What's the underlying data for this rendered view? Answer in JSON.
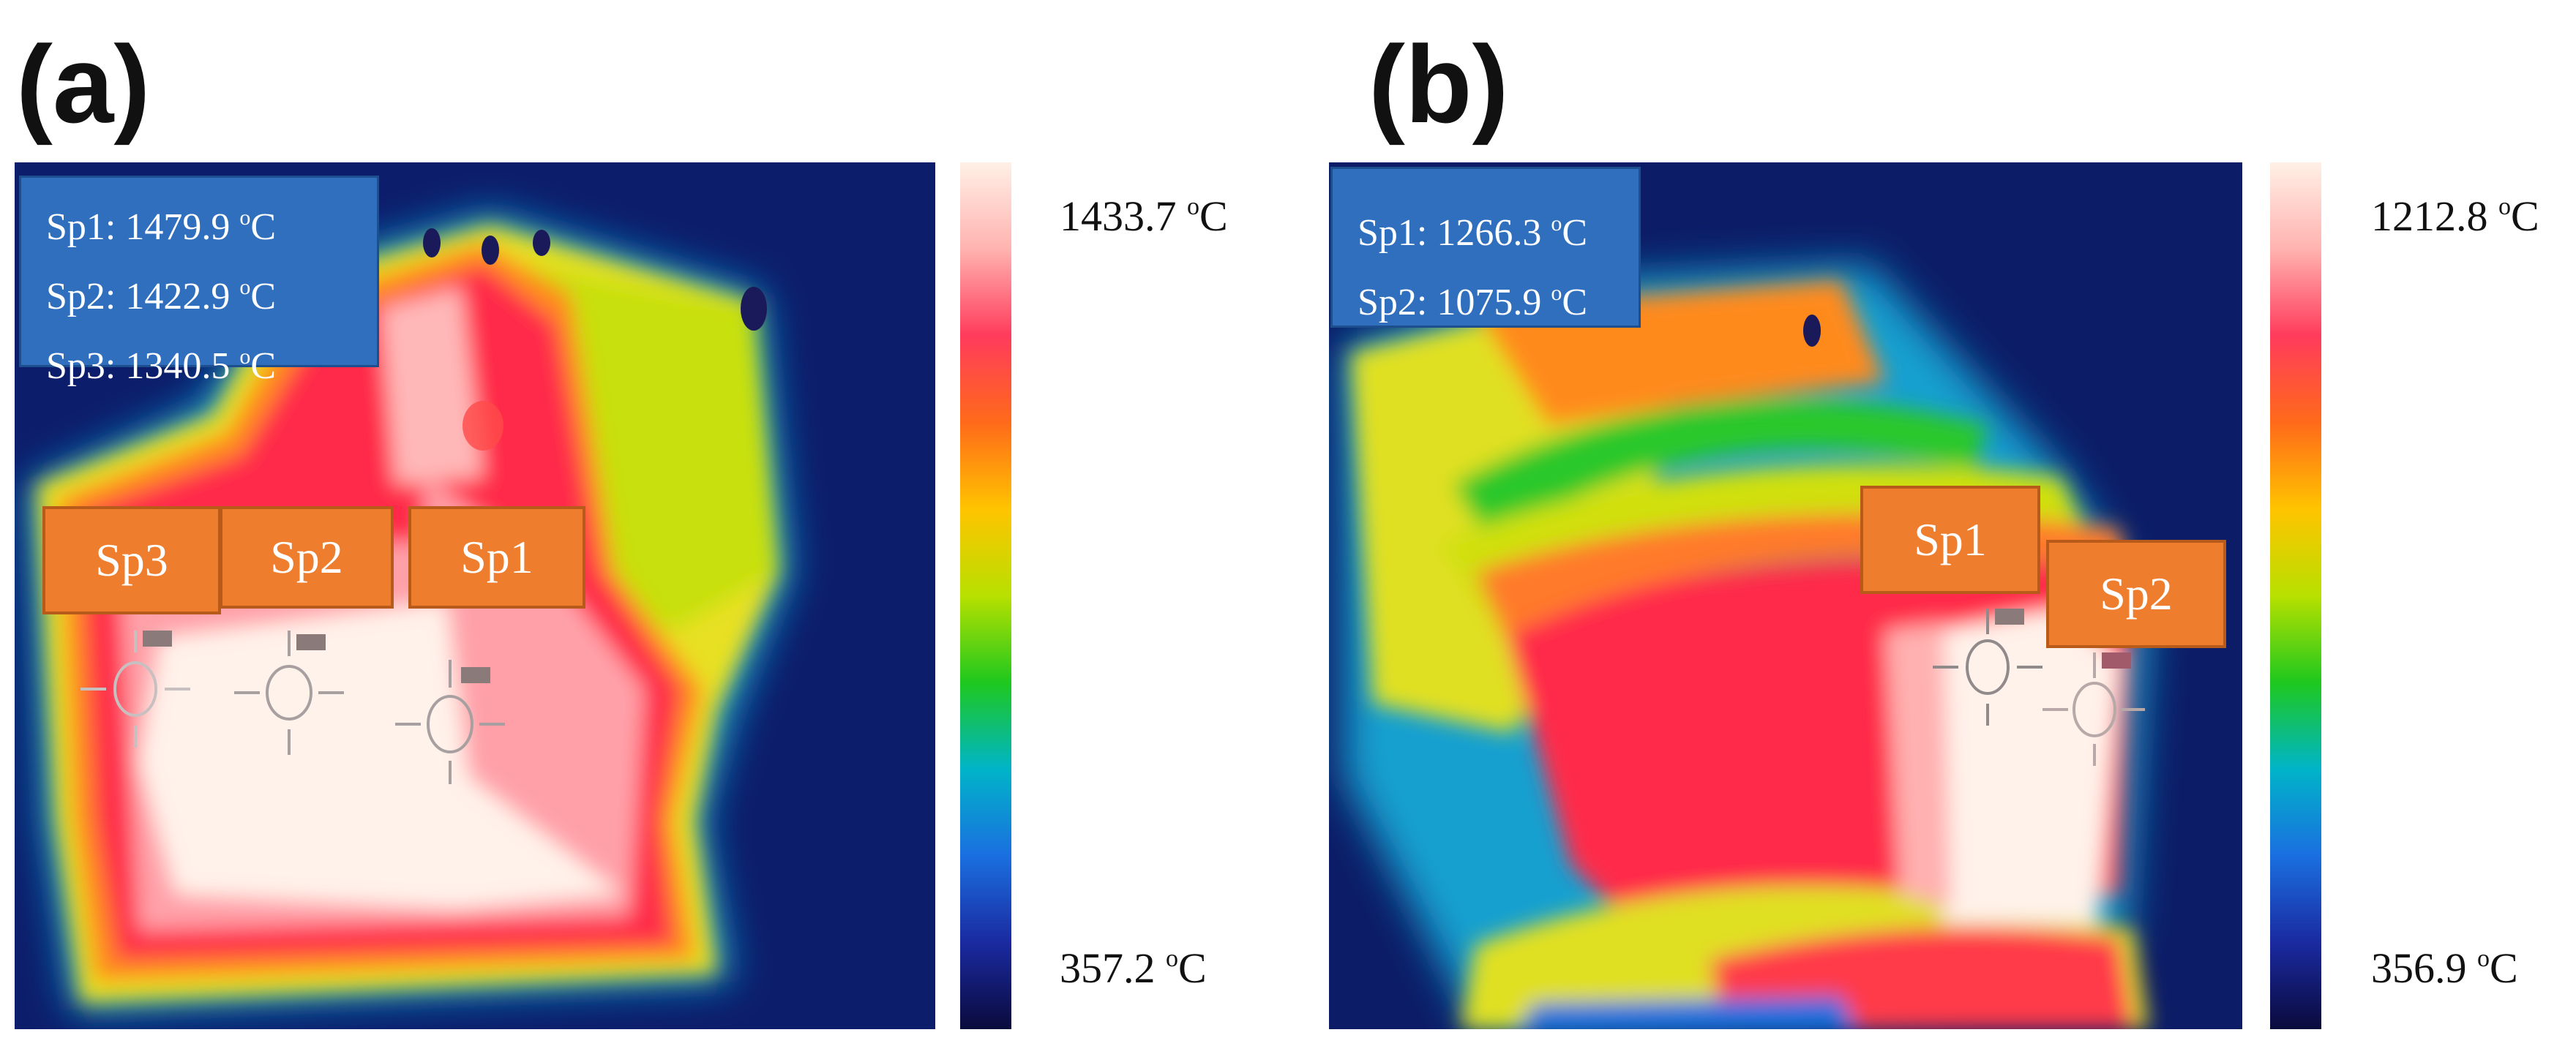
{
  "panels": [
    {
      "letter": "(a)",
      "readouts": [
        {
          "label": "Sp1: 1479.9 ",
          "unit_sup": "o",
          "unit": "C"
        },
        {
          "label": "Sp2: 1422.9 ",
          "unit_sup": "o",
          "unit": "C"
        },
        {
          "label": "Sp3: 1340.5 ",
          "unit_sup": "o",
          "unit": "C"
        }
      ],
      "spot_tags": [
        "Sp3",
        "Sp2",
        "Sp1"
      ],
      "colorbar": {
        "max_value": "1433.7 ",
        "max_sup": "o",
        "max_unit": "C",
        "min_value": "357.2 ",
        "min_sup": "o",
        "min_unit": "C"
      }
    },
    {
      "letter": "(b)",
      "readouts": [
        {
          "label": "Sp1: 1266.3 ",
          "unit_sup": "o",
          "unit": "C"
        },
        {
          "label": "Sp2: 1075.9 ",
          "unit_sup": "o",
          "unit": "C"
        }
      ],
      "spot_tags": [
        "Sp1",
        "Sp2"
      ],
      "colorbar": {
        "max_value": "1212.8 ",
        "max_sup": "o",
        "max_unit": "C",
        "min_value": "356.9 ",
        "min_sup": "o",
        "min_unit": "C"
      }
    }
  ],
  "colormap": [
    "#fff0e6",
    "#ffb3b0",
    "#ff3b5c",
    "#ff6a1a",
    "#ffc400",
    "#b8e000",
    "#1ec81e",
    "#00b4c8",
    "#1a6fe0",
    "#1a2aa0",
    "#0a0a3c"
  ],
  "marker_labels_a": [
    "Sp3",
    "Sp2",
    "Sp1"
  ],
  "marker_labels_b": [
    "Sp1",
    "Sp2"
  ]
}
